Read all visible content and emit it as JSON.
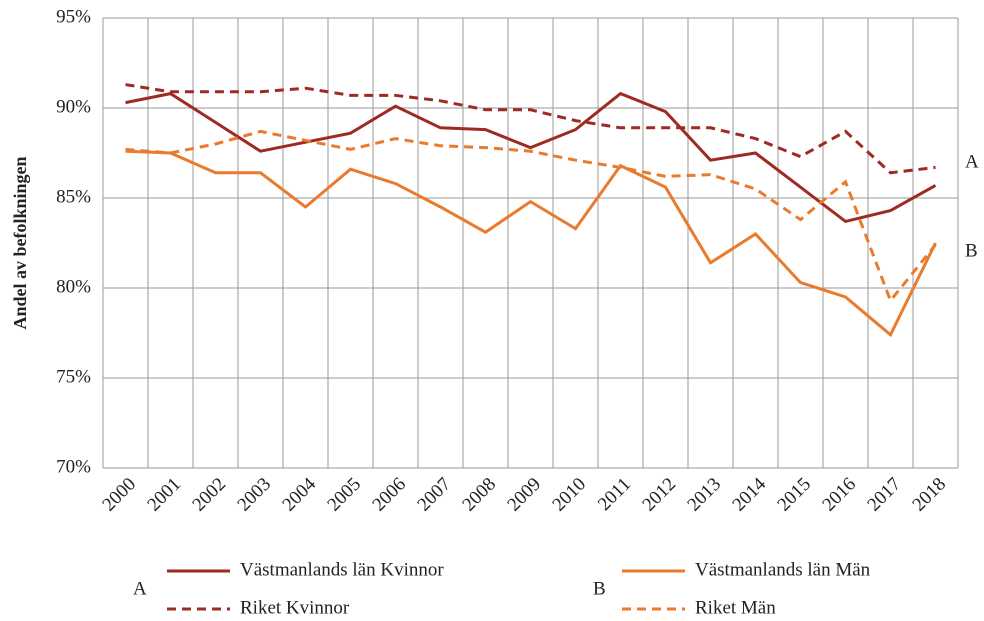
{
  "chart_data": {
    "type": "line",
    "y_label": "Andel av befolkningen",
    "categories": [
      "2000",
      "2001",
      "2002",
      "2003",
      "2004",
      "2005",
      "2006",
      "2007",
      "2008",
      "2009",
      "2010",
      "2011",
      "2012",
      "2013",
      "2014",
      "2015",
      "2016",
      "2017",
      "2018"
    ],
    "series": [
      {
        "name": "Västmanlands län Kvinnor",
        "color": "#9e2a22",
        "dashed": false,
        "values": [
          90.3,
          90.8,
          89.2,
          87.6,
          88.1,
          88.6,
          90.1,
          88.9,
          88.8,
          87.8,
          88.8,
          90.8,
          89.8,
          87.1,
          87.5,
          85.6,
          83.7,
          84.3,
          85.7
        ]
      },
      {
        "name": "Riket Kvinnor",
        "color": "#9e2a22",
        "dashed": true,
        "values": [
          91.3,
          90.9,
          90.9,
          90.9,
          91.1,
          90.7,
          90.7,
          90.4,
          89.9,
          89.9,
          89.3,
          88.9,
          88.9,
          88.9,
          88.3,
          87.3,
          88.7,
          86.4,
          86.7
        ]
      },
      {
        "name": "Västmanlands län Män",
        "color": "#ea7a2c",
        "dashed": false,
        "values": [
          87.6,
          87.5,
          86.4,
          86.4,
          84.5,
          86.6,
          85.8,
          84.5,
          83.1,
          84.8,
          83.3,
          86.8,
          85.6,
          81.4,
          83.0,
          80.3,
          79.5,
          77.4,
          82.5
        ]
      },
      {
        "name": "Riket Män",
        "color": "#ea7a2c",
        "dashed": true,
        "values": [
          87.7,
          87.5,
          88.0,
          88.7,
          88.2,
          87.7,
          88.3,
          87.9,
          87.8,
          87.6,
          87.1,
          86.7,
          86.2,
          86.3,
          85.5,
          83.8,
          85.9,
          79.3,
          82.4
        ]
      }
    ],
    "annotations": [
      "A",
      "B"
    ],
    "legend_groups": [
      "A",
      "B"
    ],
    "ylim": [
      70,
      95
    ],
    "yticks": [
      {
        "value": 70,
        "label": "70%"
      },
      {
        "value": 75,
        "label": "75%"
      },
      {
        "value": 80,
        "label": "80%"
      },
      {
        "value": 85,
        "label": "85%"
      },
      {
        "value": 90,
        "label": "90%"
      },
      {
        "value": 95,
        "label": "95%"
      }
    ],
    "grid": true
  }
}
